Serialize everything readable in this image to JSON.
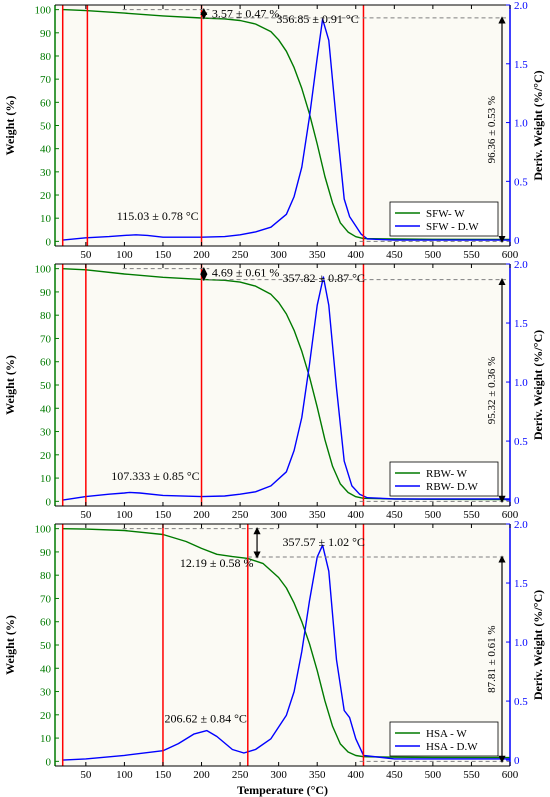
{
  "x_axis_title": "Temperature (°C)",
  "colors": {
    "weight": "#007a00",
    "deriv": "#0000ff",
    "marker": "#ff0000",
    "plot_bg": "#fbfaf4",
    "dash": "#7f7f7f"
  },
  "chart_data": [
    {
      "type": "line",
      "sample": "SFW",
      "xlim": [
        10,
        600
      ],
      "ylim_left": [
        -2,
        102
      ],
      "ylim_right": [
        -0.05,
        2.0
      ],
      "x_ticks": [
        50,
        100,
        150,
        200,
        250,
        300,
        350,
        400,
        450,
        500,
        550,
        600
      ],
      "left_ticks": [
        0,
        10,
        20,
        30,
        40,
        50,
        60,
        70,
        80,
        90,
        100
      ],
      "right_ticks": [
        0,
        0.5,
        1.0,
        1.5,
        2.0
      ],
      "ylabel_left": "Weight (%)",
      "ylabel_right": "Deriv. Weight (%/°C)",
      "legend_position": "bottom-right",
      "series": [
        {
          "name": "SFW- W",
          "axis": "left",
          "x": [
            20,
            50,
            100,
            150,
            200,
            230,
            250,
            270,
            290,
            300,
            310,
            320,
            330,
            340,
            350,
            360,
            370,
            380,
            390,
            400,
            410,
            450,
            500,
            600
          ],
          "y": [
            100,
            99.6,
            98.5,
            97.3,
            96.4,
            96.0,
            95.3,
            93.8,
            90.5,
            87.0,
            82.0,
            75.0,
            66.0,
            55.0,
            42.0,
            28.0,
            16.5,
            8.0,
            4.0,
            2.0,
            1.2,
            1.0,
            0.9,
            0.8
          ]
        },
        {
          "name": "SFW - D.W",
          "axis": "right",
          "x": [
            20,
            50,
            80,
            100,
            115,
            130,
            150,
            200,
            230,
            250,
            270,
            290,
            310,
            320,
            330,
            340,
            350,
            357,
            365,
            375,
            385,
            392,
            400,
            407,
            415,
            450,
            500,
            600
          ],
          "y": [
            0.0,
            0.02,
            0.03,
            0.04,
            0.045,
            0.04,
            0.025,
            0.025,
            0.03,
            0.045,
            0.07,
            0.11,
            0.22,
            0.37,
            0.62,
            1.05,
            1.55,
            1.88,
            1.7,
            1.0,
            0.35,
            0.2,
            0.12,
            0.05,
            0.01,
            0.0,
            0.0,
            0.0
          ]
        }
      ],
      "vlines": [
        20,
        52,
        200,
        410
      ],
      "annotations": {
        "mass_loss_1": "3.57 ± 0.47 %",
        "peak_temp": "356.85 ± 0.91 °C",
        "total_loss": "96.36 ± 0.53 %",
        "low_peak": "115.03 ± 0.78 °C"
      },
      "mass_loss_span_pct": [
        100,
        96.43
      ],
      "total_loss_span_pct": [
        96.43,
        0
      ]
    },
    {
      "type": "line",
      "sample": "RBW",
      "xlim": [
        10,
        600
      ],
      "ylim_left": [
        -2,
        102
      ],
      "ylim_right": [
        -0.05,
        2.0
      ],
      "x_ticks": [
        50,
        100,
        150,
        200,
        250,
        300,
        350,
        400,
        450,
        500,
        550,
        600
      ],
      "left_ticks": [
        0,
        10,
        20,
        30,
        40,
        50,
        60,
        70,
        80,
        90,
        100
      ],
      "right_ticks": [
        0,
        0.5,
        1.0,
        1.5,
        2.0
      ],
      "ylabel_left": "Weight (%)",
      "ylabel_right": "Deriv. Weight (%/°C)",
      "legend_position": "bottom-right",
      "series": [
        {
          "name": "RBW- W",
          "axis": "left",
          "x": [
            20,
            50,
            100,
            150,
            200,
            230,
            250,
            270,
            290,
            300,
            310,
            320,
            330,
            340,
            350,
            360,
            370,
            380,
            390,
            400,
            410,
            450,
            500,
            600
          ],
          "y": [
            100,
            99.5,
            97.7,
            96.3,
            95.4,
            95.0,
            94.2,
            92.5,
            89.0,
            85.5,
            80.5,
            73.5,
            64.5,
            53.5,
            40.5,
            26.5,
            15.0,
            7.5,
            3.8,
            2.0,
            1.3,
            1.0,
            0.9,
            0.8
          ]
        },
        {
          "name": "RBW- D.W",
          "axis": "right",
          "x": [
            20,
            50,
            80,
            100,
            107,
            120,
            150,
            200,
            230,
            250,
            270,
            290,
            310,
            320,
            330,
            340,
            350,
            358,
            365,
            375,
            385,
            395,
            405,
            415,
            450,
            500,
            600
          ],
          "y": [
            0.0,
            0.03,
            0.05,
            0.06,
            0.065,
            0.06,
            0.04,
            0.03,
            0.035,
            0.05,
            0.07,
            0.12,
            0.24,
            0.42,
            0.7,
            1.15,
            1.65,
            1.89,
            1.65,
            0.95,
            0.33,
            0.12,
            0.05,
            0.02,
            0.01,
            0.01,
            0.01
          ]
        }
      ],
      "vlines": [
        20,
        50,
        200,
        410
      ],
      "annotations": {
        "mass_loss_1": "4.69 ± 0.61 %",
        "peak_temp": "357.82 ± 0.87 °C",
        "total_loss": "95.32 ± 0.36 %",
        "low_peak": "107.333 ± 0.85 °C"
      },
      "mass_loss_span_pct": [
        100,
        95.31
      ],
      "total_loss_span_pct": [
        95.31,
        0
      ]
    },
    {
      "type": "line",
      "sample": "HSA",
      "xlim": [
        10,
        600
      ],
      "ylim_left": [
        -2,
        102
      ],
      "ylim_right": [
        -0.05,
        2.0
      ],
      "x_ticks": [
        50,
        100,
        150,
        200,
        250,
        300,
        350,
        400,
        450,
        500,
        550,
        600
      ],
      "left_ticks": [
        0,
        10,
        20,
        30,
        40,
        50,
        60,
        70,
        80,
        90,
        100
      ],
      "right_ticks": [
        0,
        0.5,
        1.0,
        1.5,
        2.0
      ],
      "ylabel_left": "Weight (%)",
      "ylabel_right": "Deriv. Weight (%/°C)",
      "xlabel": "Temperature (°C)",
      "legend_position": "bottom-right",
      "series": [
        {
          "name": "HSA - W",
          "axis": "left",
          "x": [
            20,
            50,
            100,
            150,
            180,
            200,
            220,
            240,
            260,
            280,
            300,
            310,
            320,
            330,
            340,
            350,
            360,
            370,
            380,
            390,
            400,
            410,
            450,
            500,
            600
          ],
          "y": [
            100,
            99.8,
            99.2,
            97.5,
            94.5,
            91.5,
            89.0,
            88.0,
            87.2,
            85.0,
            79.0,
            74.5,
            68.0,
            60.0,
            50.5,
            39.0,
            26.0,
            15.0,
            7.5,
            4.0,
            2.5,
            2.0,
            1.8,
            1.7,
            1.6
          ]
        },
        {
          "name": "HSA - D.W",
          "axis": "right",
          "x": [
            20,
            50,
            100,
            150,
            170,
            190,
            207,
            220,
            240,
            255,
            270,
            290,
            310,
            320,
            330,
            340,
            350,
            357,
            365,
            375,
            385,
            392,
            400,
            410,
            450,
            500,
            600
          ],
          "y": [
            0.0,
            0.01,
            0.04,
            0.08,
            0.14,
            0.22,
            0.25,
            0.2,
            0.09,
            0.06,
            0.09,
            0.18,
            0.38,
            0.58,
            0.92,
            1.35,
            1.72,
            1.82,
            1.6,
            0.85,
            0.42,
            0.36,
            0.18,
            0.04,
            0.01,
            0.01,
            0.01
          ]
        }
      ],
      "vlines": [
        20,
        150,
        260,
        410
      ],
      "annotations": {
        "mass_loss_1": "12.19 ± 0.58 %",
        "peak_temp": "357.57 ± 1.02 °C",
        "total_loss": "87.81 ± 0.61 %",
        "low_peak": "206.62 ± 0.84 °C"
      },
      "mass_loss_span_pct": [
        100,
        87.81
      ],
      "total_loss_span_pct": [
        87.81,
        0
      ]
    }
  ]
}
